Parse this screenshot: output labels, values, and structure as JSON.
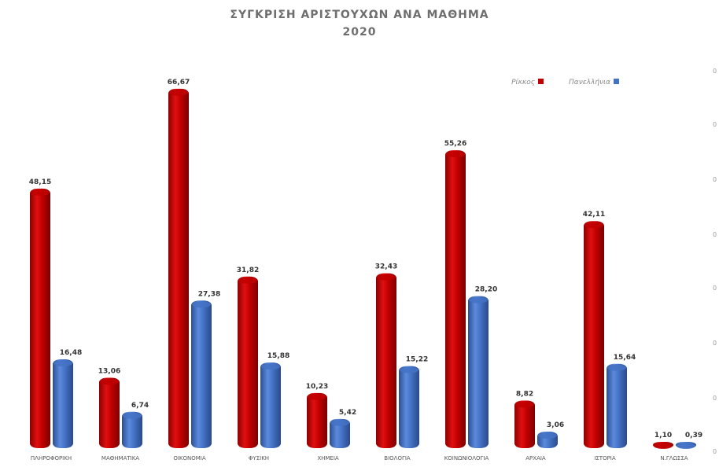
{
  "chart_data": {
    "type": "bar",
    "title": "ΣΥΓΚΡΙΣΗ ΑΡΙΣΤΟΥΧΩΝ ΑΝΑ ΜΑΘΗΜΑ",
    "subtitle": "2020",
    "categories": [
      "ΠΛΗΡΟΦΟΡΙΚΗ",
      "ΜΑΘΗΜΑΤΙΚΑ",
      "ΟΙΚΟΝΟΜΙΑ",
      "ΦΥΣΙΚΗ",
      "ΧΗΜΕΙΑ",
      "ΒΙΟΛΟΓΙΑ",
      "ΚΟΙΝΩΝΙΟΛΟΓΙΑ",
      "ΑΡΧΑΙΑ",
      "ΙΣΤΟΡΙΑ",
      "Ν.ΓΛΩΣΣΑ"
    ],
    "series": [
      {
        "name": "Ρίκκος",
        "color": "#c00000",
        "values": [
          48.15,
          13.06,
          66.67,
          31.82,
          10.23,
          32.43,
          55.26,
          8.82,
          42.11,
          1.1
        ],
        "labels": [
          "48,15",
          "13,06",
          "66,67",
          "31,82",
          "10,23",
          "32,43",
          "55,26",
          "8,82",
          "42,11",
          "1,10"
        ]
      },
      {
        "name": "Πανελλήνια",
        "color": "#4472c4",
        "values": [
          16.48,
          6.74,
          27.38,
          15.88,
          5.42,
          15.22,
          28.2,
          3.06,
          15.64,
          0.39
        ],
        "labels": [
          "16,48",
          "6,74",
          "27,38",
          "15,88",
          "5,42",
          "15,22",
          "28,20",
          "3,06",
          "15,64",
          "0,39"
        ]
      }
    ],
    "ylim": [
      0,
      70
    ],
    "y_ticks": [
      "0",
      "0",
      "0",
      "0",
      "0",
      "0",
      "0",
      "0"
    ],
    "grid": false,
    "legend_position": "top-right",
    "mirrored": true
  }
}
